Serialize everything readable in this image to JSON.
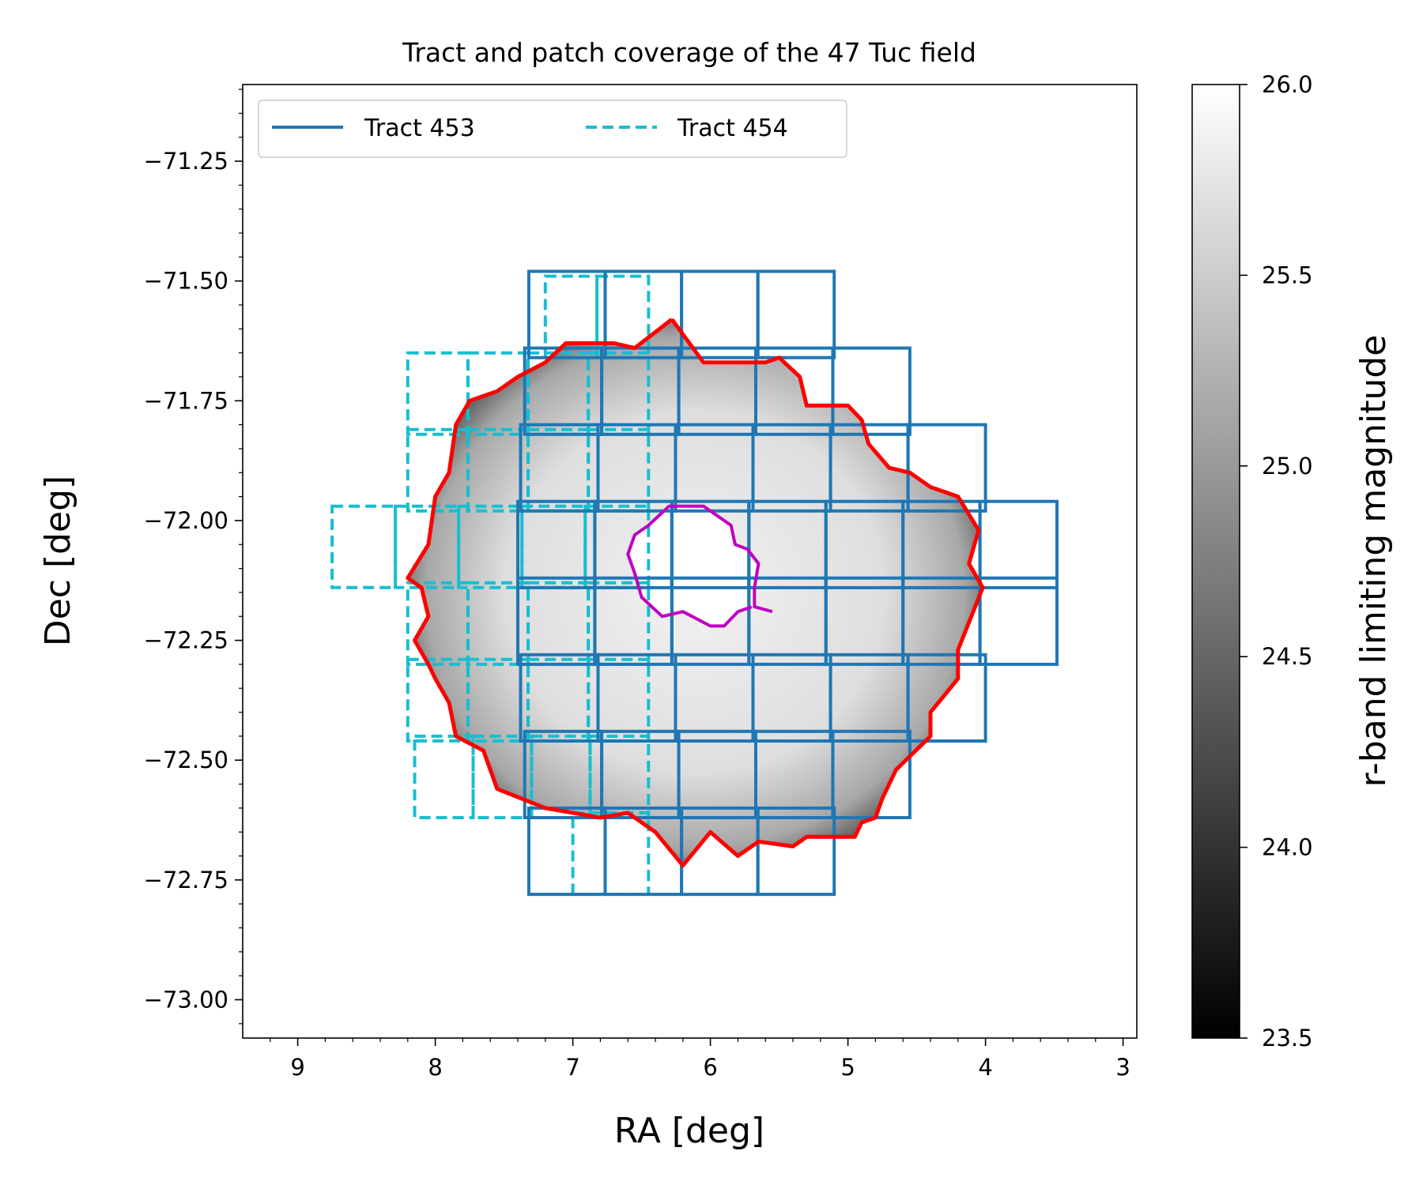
{
  "chart_data": {
    "type": "map",
    "title": "Tract and patch coverage of the 47 Tuc field",
    "xlabel": "RA [deg]",
    "ylabel": "Dec [deg]",
    "xlim": [
      9.4,
      2.9
    ],
    "ylim": [
      -73.08,
      -71.09
    ],
    "x_ticks": [
      9,
      8,
      7,
      6,
      5,
      4,
      3
    ],
    "x_tick_labels": [
      "9",
      "8",
      "7",
      "6",
      "5",
      "4",
      "3"
    ],
    "y_ticks": [
      -71.25,
      -71.5,
      -71.75,
      -72.0,
      -72.25,
      -72.5,
      -72.75,
      -73.0
    ],
    "y_tick_labels": [
      "−71.25",
      "−71.50",
      "−71.75",
      "−72.00",
      "−72.25",
      "−72.50",
      "−72.75",
      "−73.00"
    ],
    "legend": {
      "placement": "top-left",
      "entries": [
        {
          "label": "Tract 453",
          "style": "solid",
          "color": "#1f77b4"
        },
        {
          "label": "Tract 454",
          "style": "dashed",
          "color": "#17becf"
        }
      ]
    },
    "colorbar": {
      "label": "r-band limiting magnitude",
      "range": [
        23.5,
        26.0
      ],
      "ticks": [
        23.5,
        24.0,
        24.5,
        25.0,
        25.5,
        26.0
      ],
      "tick_labels": [
        "23.5",
        "24.0",
        "24.5",
        "25.0",
        "25.5",
        "26.0"
      ],
      "cmap": "gray"
    },
    "tract_453": {
      "color": "#1f77b4",
      "row_rect_bounds": [
        {
          "dec": [
            -71.66,
            -71.48
          ],
          "ra": [
            7.32,
            5.1
          ],
          "cols": 4
        },
        {
          "dec": [
            -71.82,
            -71.64
          ],
          "ra": [
            7.35,
            4.55
          ],
          "cols": 5
        },
        {
          "dec": [
            -71.98,
            -71.8
          ],
          "ra": [
            7.38,
            4.0
          ],
          "cols": 6
        },
        {
          "dec": [
            -72.14,
            -71.96
          ],
          "ra": [
            7.4,
            3.48
          ],
          "cols": 7
        },
        {
          "dec": [
            -72.3,
            -72.12
          ],
          "ra": [
            7.4,
            3.48
          ],
          "cols": 7
        },
        {
          "dec": [
            -72.46,
            -72.28
          ],
          "ra": [
            7.38,
            4.0
          ],
          "cols": 6
        },
        {
          "dec": [
            -72.62,
            -72.44
          ],
          "ra": [
            7.35,
            4.55
          ],
          "cols": 5
        },
        {
          "dec": [
            -72.78,
            -72.6
          ],
          "ra": [
            7.32,
            5.1
          ],
          "cols": 4
        }
      ]
    },
    "tract_454": {
      "color": "#17becf",
      "row_rect_bounds": [
        {
          "dec": [
            -71.66,
            -71.49
          ],
          "ra": [
            7.2,
            6.45
          ],
          "cols": 2
        },
        {
          "dec": [
            -71.82,
            -71.65
          ],
          "ra": [
            8.2,
            6.45
          ],
          "cols": 4
        },
        {
          "dec": [
            -71.98,
            -71.81
          ],
          "ra": [
            8.2,
            6.45
          ],
          "cols": 4
        },
        {
          "dec": [
            -72.14,
            -71.97
          ],
          "ra": [
            8.75,
            6.45
          ],
          "cols": 5
        },
        {
          "dec": [
            -72.3,
            -72.13
          ],
          "ra": [
            8.2,
            6.45
          ],
          "cols": 4
        },
        {
          "dec": [
            -72.46,
            -72.29
          ],
          "ra": [
            8.2,
            6.45
          ],
          "cols": 4
        },
        {
          "dec": [
            -72.62,
            -72.45
          ],
          "ra": [
            8.15,
            6.45
          ],
          "cols": 4
        },
        {
          "dec": [
            -72.78,
            -72.61
          ],
          "ra": [
            7.0,
            6.45
          ],
          "cols": 1
        }
      ]
    },
    "outer_boundary": {
      "color": "#ff0000",
      "points": [
        [
          6.28,
          -71.58
        ],
        [
          6.05,
          -71.67
        ],
        [
          5.6,
          -71.67
        ],
        [
          5.5,
          -71.66
        ],
        [
          5.35,
          -71.7
        ],
        [
          5.3,
          -71.76
        ],
        [
          5.0,
          -71.76
        ],
        [
          4.9,
          -71.79
        ],
        [
          4.85,
          -71.84
        ],
        [
          4.7,
          -71.89
        ],
        [
          4.55,
          -71.9
        ],
        [
          4.4,
          -71.93
        ],
        [
          4.2,
          -71.95
        ],
        [
          4.05,
          -72.02
        ],
        [
          4.12,
          -72.09
        ],
        [
          4.02,
          -72.14
        ],
        [
          4.2,
          -72.27
        ],
        [
          4.2,
          -72.33
        ],
        [
          4.4,
          -72.4
        ],
        [
          4.4,
          -72.45
        ],
        [
          4.65,
          -72.52
        ],
        [
          4.75,
          -72.58
        ],
        [
          4.8,
          -72.62
        ],
        [
          4.9,
          -72.63
        ],
        [
          4.95,
          -72.66
        ],
        [
          5.3,
          -72.66
        ],
        [
          5.4,
          -72.68
        ],
        [
          5.65,
          -72.67
        ],
        [
          5.8,
          -72.7
        ],
        [
          6.0,
          -72.65
        ],
        [
          6.2,
          -72.72
        ],
        [
          6.4,
          -72.65
        ],
        [
          6.6,
          -72.61
        ],
        [
          6.8,
          -72.62
        ],
        [
          7.0,
          -72.61
        ],
        [
          7.2,
          -72.6
        ],
        [
          7.55,
          -72.56
        ],
        [
          7.65,
          -72.48
        ],
        [
          7.85,
          -72.45
        ],
        [
          7.9,
          -72.38
        ],
        [
          8.0,
          -72.33
        ],
        [
          8.05,
          -72.3
        ],
        [
          8.15,
          -72.25
        ],
        [
          8.05,
          -72.2
        ],
        [
          8.1,
          -72.14
        ],
        [
          8.2,
          -72.12
        ],
        [
          8.05,
          -72.05
        ],
        [
          8.0,
          -71.95
        ],
        [
          7.9,
          -71.9
        ],
        [
          7.85,
          -71.8
        ],
        [
          7.75,
          -71.75
        ],
        [
          7.55,
          -71.73
        ],
        [
          7.4,
          -71.7
        ],
        [
          7.2,
          -71.67
        ],
        [
          7.05,
          -71.63
        ],
        [
          6.7,
          -71.63
        ],
        [
          6.55,
          -71.64
        ]
      ]
    },
    "inner_boundary": {
      "color": "#c000c0",
      "points": [
        [
          5.55,
          -72.19
        ],
        [
          5.68,
          -72.18
        ],
        [
          5.68,
          -72.14
        ],
        [
          5.65,
          -72.09
        ],
        [
          5.73,
          -72.06
        ],
        [
          5.82,
          -72.05
        ],
        [
          5.85,
          -72.01
        ],
        [
          5.95,
          -71.99
        ],
        [
          6.05,
          -71.97
        ],
        [
          6.3,
          -71.97
        ],
        [
          6.45,
          -72.01
        ],
        [
          6.55,
          -72.03
        ],
        [
          6.6,
          -72.07
        ],
        [
          6.55,
          -72.11
        ],
        [
          6.5,
          -72.16
        ],
        [
          6.35,
          -72.2
        ],
        [
          6.2,
          -72.19
        ],
        [
          6.0,
          -72.22
        ],
        [
          5.9,
          -72.22
        ],
        [
          5.8,
          -72.19
        ],
        [
          5.7,
          -72.18
        ]
      ]
    }
  }
}
